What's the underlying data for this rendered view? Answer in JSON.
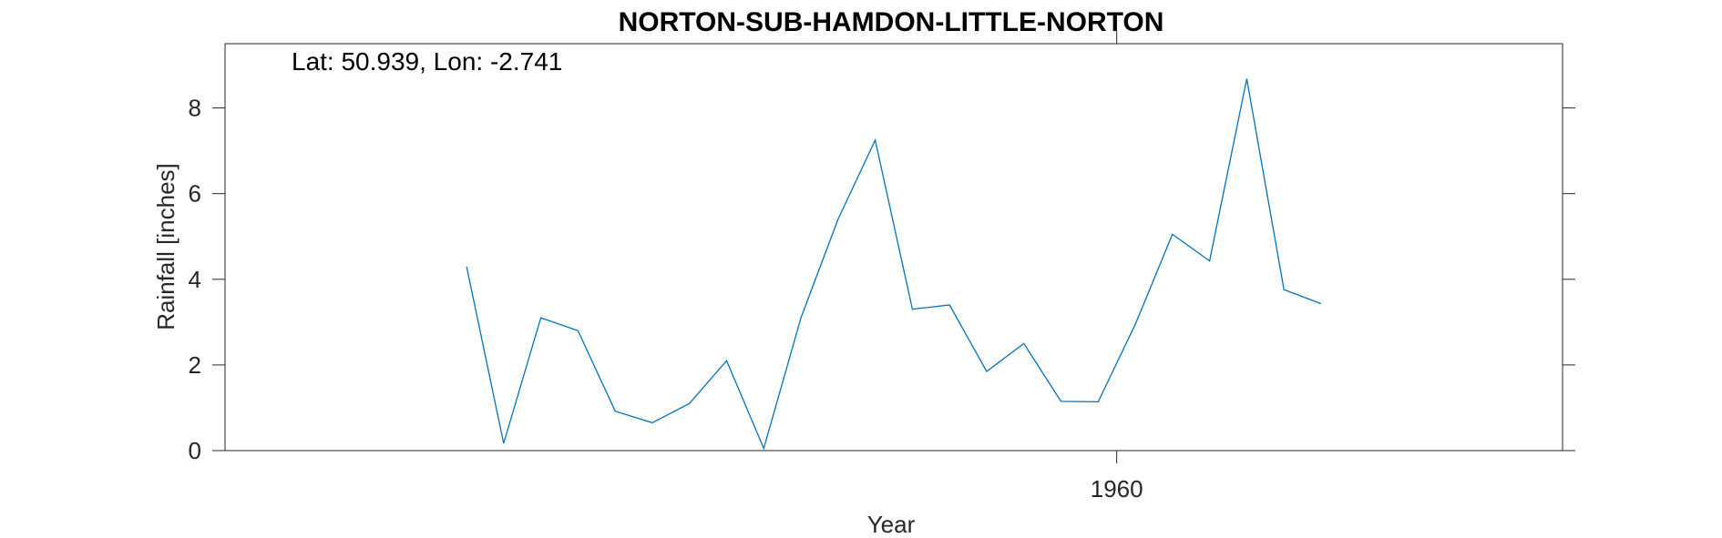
{
  "chart_data": {
    "type": "line",
    "title": "NORTON-SUB-HAMDON-LITTLE-NORTON",
    "annotation": "Lat: 50.939, Lon: -2.741",
    "xlabel": "Year",
    "ylabel": "Rainfall [inches]",
    "xlim": [
      1936,
      1972
    ],
    "ylim": [
      0,
      9.5
    ],
    "x_ticks": [
      1960
    ],
    "y_ticks": [
      0,
      2,
      4,
      6,
      8
    ],
    "grid": false,
    "series": [
      {
        "color": "#0072BD",
        "x": [
          1942.5,
          1943.5,
          1944.5,
          1945.5,
          1946.5,
          1947.5,
          1948.5,
          1949.5,
          1950.5,
          1951.5,
          1952.5,
          1953.5,
          1954.5,
          1955.5,
          1956.5,
          1957.5,
          1958.5,
          1959.5,
          1960.5,
          1961.5,
          1962.5,
          1963.5,
          1964.5,
          1965.5
        ],
        "y": [
          4.3,
          0.17,
          3.1,
          2.8,
          0.92,
          0.65,
          1.1,
          2.1,
          0.05,
          3.1,
          5.4,
          7.25,
          3.3,
          3.4,
          1.85,
          2.5,
          1.15,
          1.14,
          2.95,
          5.05,
          4.43,
          8.68,
          3.76,
          3.43
        ]
      }
    ]
  }
}
